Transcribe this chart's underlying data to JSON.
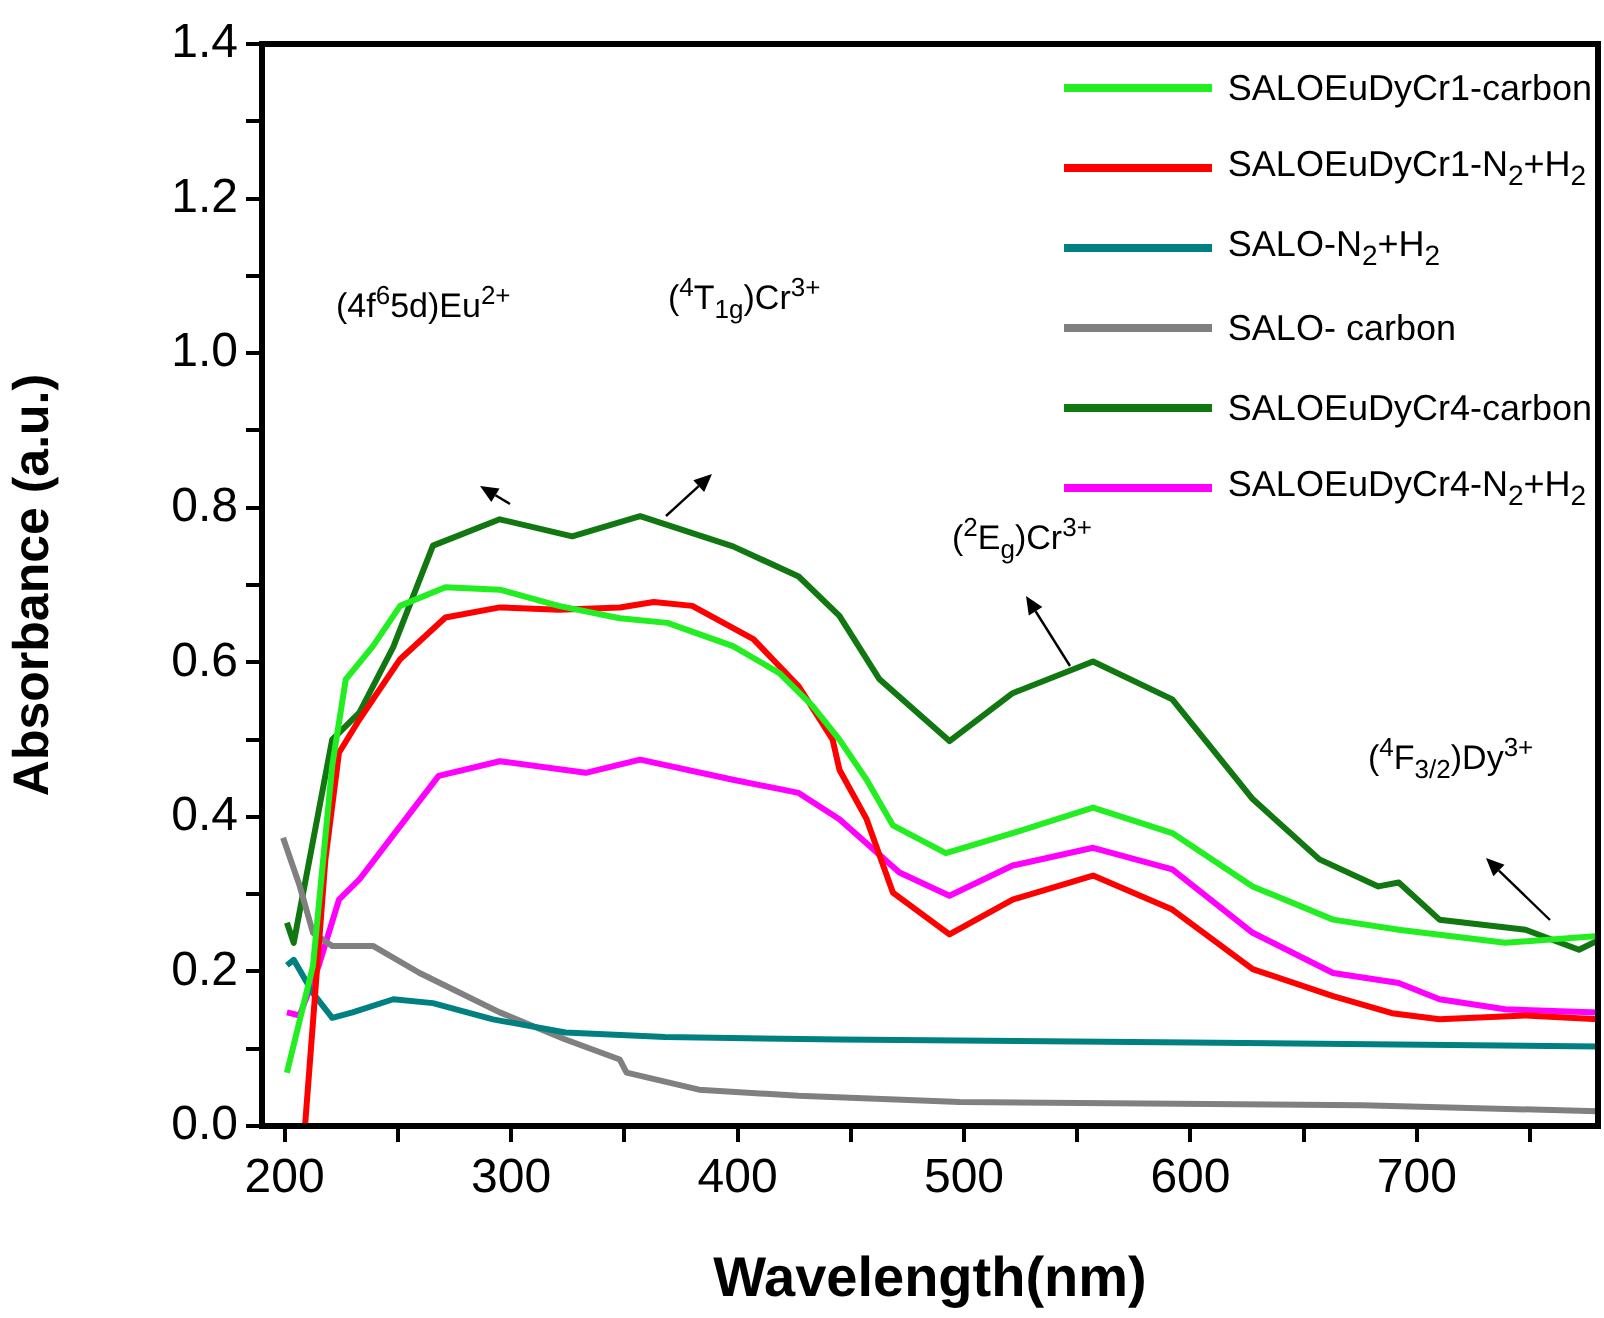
{
  "chart_data": {
    "type": "line",
    "xlabel": "Wavelength(nm)",
    "ylabel": "Absorbance (a.u.)",
    "xlim": [
      190,
      780
    ],
    "xticks": [
      200,
      {
        "value": 250,
        "label": null
      },
      300,
      {
        "value": 350,
        "label": null
      },
      400,
      {
        "value": 450,
        "label": null
      },
      500,
      {
        "value": 550,
        "label": null
      },
      600,
      {
        "value": 650,
        "label": null
      },
      700,
      {
        "value": 750,
        "label": null
      }
    ],
    "ylim": [
      0,
      1.4
    ],
    "yticks": [
      {
        "value": 0,
        "label": "0.0"
      },
      {
        "value": 0.1,
        "label": null
      },
      0.2,
      {
        "value": 0.3,
        "label": null
      },
      0.4,
      {
        "value": 0.5,
        "label": null
      },
      0.6,
      {
        "value": 0.7,
        "label": null
      },
      0.8,
      {
        "value": 0.9,
        "label": null
      },
      {
        "value": 1,
        "label": "1.0"
      },
      {
        "value": 1.1,
        "label": null
      },
      1.2,
      {
        "value": 1.3,
        "label": null
      },
      1.4
    ],
    "grid": false,
    "legend": "top right",
    "marker": "none",
    "line_style": "solid",
    "annotations": [
      "(4f$^{6}$5d)Eu$^{2+}$",
      "($^{4}$T$_{1g}$)Cr$^{3+}$",
      "($^{2}$E$_{g}$)Cr$^{3+}$",
      "($^{4}$F$_{3/2}$)Dy$^{3+}$"
    ],
    "series": [
      {
        "name": "SALOEuDyCr1-carbon",
        "color": "#22ee22",
        "x": [
          201,
          212.5,
          221,
          227,
          239,
          251,
          271,
          295,
          321,
          348,
          369,
          398,
          418.5,
          433,
          445,
          457,
          468.6,
          492,
          521.5,
          557,
          592,
          627.5,
          663,
          692,
          739,
          780
        ],
        "values": [
          0.069,
          0.207,
          0.466,
          0.578,
          0.621,
          0.673,
          0.697,
          0.694,
          0.673,
          0.657,
          0.651,
          0.621,
          0.586,
          0.544,
          0.5,
          0.448,
          0.389,
          0.353,
          0.379,
          0.412,
          0.379,
          0.31,
          0.267,
          0.254,
          0.237,
          0.246
        ]
      },
      {
        "name": "SALOEuDyCr1-N$_{2}$+H$_{2}$",
        "color": "#ff0000",
        "x": [
          209,
          218,
          224,
          233,
          251,
          271,
          295,
          321,
          348,
          363,
          380,
          407,
          427,
          442,
          445,
          457,
          468.6,
          493.6,
          521.5,
          557,
          592,
          627.5,
          663,
          689,
          710,
          748,
          780
        ],
        "values": [
          0,
          0.345,
          0.483,
          0.526,
          0.604,
          0.658,
          0.671,
          0.668,
          0.671,
          0.678,
          0.673,
          0.63,
          0.569,
          0.5,
          0.461,
          0.397,
          0.302,
          0.248,
          0.293,
          0.324,
          0.28,
          0.203,
          0.168,
          0.146,
          0.138,
          0.143,
          0.138
        ]
      },
      {
        "name": "SALO-N$_{2}$+H$_{2}$",
        "color": "#008080",
        "x": [
          201,
          204,
          212.5,
          221,
          230,
          248,
          265.5,
          292,
          324,
          368,
          445,
          600,
          780
        ],
        "values": [
          0.208,
          0.215,
          0.172,
          0.14,
          0.147,
          0.164,
          0.159,
          0.138,
          0.121,
          0.115,
          0.112,
          0.108,
          0.103
        ]
      },
      {
        "name": "SALO- carbon",
        "color": "#808080",
        "x": [
          199.3,
          206.6,
          212.5,
          221,
          239,
          259.6,
          295,
          324,
          348,
          351,
          383,
          427,
          498,
          676,
          780
        ],
        "values": [
          0.373,
          0.311,
          0.25,
          0.233,
          0.233,
          0.198,
          0.147,
          0.112,
          0.086,
          0.069,
          0.047,
          0.039,
          0.031,
          0.027,
          0.019
        ]
      },
      {
        "name": "SALOEuDyCr4-carbon",
        "color": "#117711",
        "x": [
          201,
          204,
          221,
          233,
          248,
          265.5,
          295,
          327,
          357,
          398,
          427,
          445,
          462.7,
          493.6,
          521.5,
          557,
          592,
          627.5,
          657,
          683,
          692,
          710,
          748,
          771.6,
          780
        ],
        "values": [
          0.263,
          0.237,
          0.5,
          0.535,
          0.62,
          0.751,
          0.785,
          0.763,
          0.789,
          0.75,
          0.711,
          0.66,
          0.578,
          0.498,
          0.56,
          0.601,
          0.552,
          0.423,
          0.345,
          0.31,
          0.315,
          0.267,
          0.254,
          0.228,
          0.24
        ]
      },
      {
        "name": "SALOEuDyCr4-N$_{2}$+H$_{2}$",
        "color": "#ff00ff",
        "x": [
          201,
          206.6,
          215,
          224,
          233,
          251,
          268,
          295,
          333,
          357,
          398,
          427,
          445,
          471.5,
          493.6,
          521.5,
          557,
          592,
          627.5,
          663,
          692,
          710,
          739,
          780
        ],
        "values": [
          0.147,
          0.143,
          0.207,
          0.293,
          0.319,
          0.388,
          0.453,
          0.472,
          0.457,
          0.474,
          0.448,
          0.431,
          0.397,
          0.328,
          0.298,
          0.337,
          0.36,
          0.332,
          0.25,
          0.198,
          0.185,
          0.164,
          0.151,
          0.147
        ]
      }
    ]
  }
}
